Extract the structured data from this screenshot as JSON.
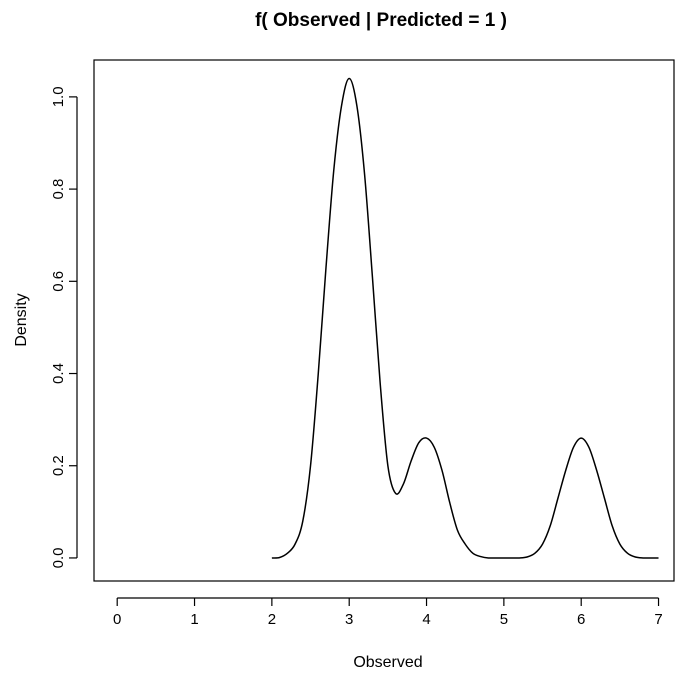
{
  "chart_data": {
    "type": "line",
    "title": "f( Observed | Predicted =  1  )",
    "xlabel": "Observed",
    "ylabel": "Density",
    "xlim": [
      -0.3,
      7.2
    ],
    "ylim": [
      -0.05,
      1.08
    ],
    "x_ticks": [
      0,
      1,
      2,
      3,
      4,
      5,
      6,
      7
    ],
    "x_tick_labels": [
      "0",
      "1",
      "2",
      "3",
      "4",
      "5",
      "6",
      "7"
    ],
    "y_ticks": [
      0.0,
      0.2,
      0.4,
      0.6,
      0.8,
      1.0
    ],
    "y_tick_labels": [
      "0.0",
      "0.2",
      "0.4",
      "0.6",
      "0.8",
      "1.0"
    ],
    "grid": false,
    "legend": "none",
    "series": [
      {
        "x": [
          2.0,
          2.1,
          2.2,
          2.3,
          2.4,
          2.5,
          2.6,
          2.7,
          2.8,
          2.9,
          3.0,
          3.1,
          3.2,
          3.3,
          3.4,
          3.5,
          3.6,
          3.7,
          3.8,
          3.9,
          4.0,
          4.1,
          4.2,
          4.3,
          4.4,
          4.5,
          4.6,
          4.7,
          4.8,
          4.9,
          5.0,
          5.1,
          5.2,
          5.3,
          5.4,
          5.5,
          5.6,
          5.7,
          5.8,
          5.9,
          6.0,
          6.1,
          6.2,
          6.3,
          6.4,
          6.5,
          6.6,
          6.7,
          6.8,
          6.9,
          7.0
        ],
        "values": [
          0.0,
          0.001,
          0.01,
          0.03,
          0.08,
          0.2,
          0.4,
          0.63,
          0.84,
          0.98,
          1.04,
          0.98,
          0.83,
          0.61,
          0.38,
          0.2,
          0.14,
          0.16,
          0.21,
          0.25,
          0.26,
          0.24,
          0.19,
          0.12,
          0.06,
          0.03,
          0.01,
          0.003,
          0.0,
          0.0,
          0.0,
          0.0,
          0.0,
          0.002,
          0.01,
          0.03,
          0.07,
          0.13,
          0.19,
          0.24,
          0.26,
          0.24,
          0.19,
          0.13,
          0.07,
          0.03,
          0.01,
          0.002,
          0.0,
          0.0,
          0.0
        ]
      }
    ]
  }
}
